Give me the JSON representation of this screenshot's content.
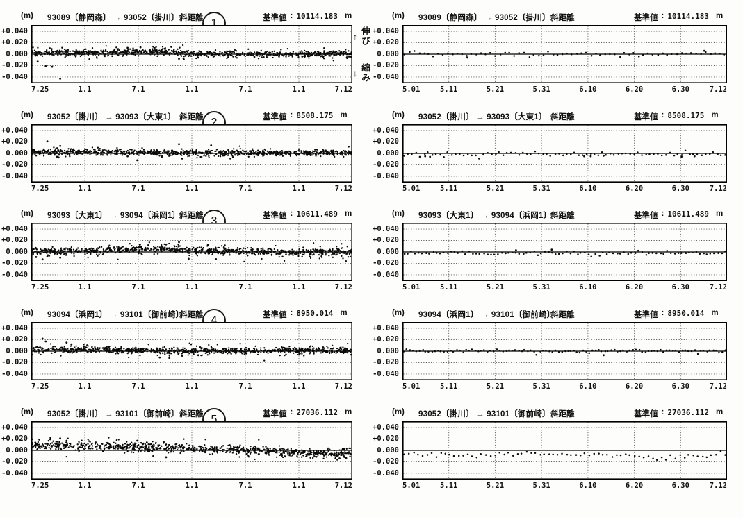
{
  "page": {
    "background": "#fdfdfc",
    "ink": "#111111"
  },
  "labels": {
    "unit": "(m)",
    "measure": "斜距離",
    "ref": "基準値",
    "ref_sep": ":",
    "ref_unit": "m"
  },
  "annotations": {
    "up_arrow": "↑",
    "extend_label": "伸び",
    "down_arrow": "↓",
    "shrink_label": "縮み"
  },
  "axis": {
    "y_ticks": [
      "+0.040",
      "+0.020",
      "0.000",
      "-0.020",
      "-0.040"
    ],
    "x_ticks_left": [
      "7.25",
      "1.1",
      "7.1",
      "1.1",
      "7.1",
      "1.1",
      "7.12"
    ],
    "x_ticks_right": [
      "5.01",
      "5.11",
      "5.21",
      "5.31",
      "6.10",
      "6.20",
      "6.30",
      "7.12"
    ]
  },
  "axis_common": {
    "ylim": [
      -0.051,
      0.051
    ],
    "gridlines_y": [
      0.04,
      0.02,
      -0.02,
      -0.04
    ],
    "zero_level": 0.0
  },
  "chart_data": [
    {
      "id": "row1-left",
      "type": "scatter",
      "x_axis": "left",
      "title": "93089〔静岡森〕 → 93052〔掛川〕",
      "circle_number": "1",
      "ref_value": "10114.183",
      "n_points": 900,
      "noise_sd": 0.0026,
      "seed": 11,
      "baseline_anchors": [
        [
          0,
          0.002
        ],
        [
          0.08,
          0.003
        ],
        [
          0.33,
          0.003
        ],
        [
          0.42,
          0.005
        ],
        [
          0.5,
          0.001
        ],
        [
          0.6,
          0.0
        ],
        [
          0.8,
          0.0
        ],
        [
          1,
          0.001
        ]
      ],
      "outliers": [
        [
          0.02,
          -0.013
        ],
        [
          0.045,
          -0.021
        ],
        [
          0.065,
          -0.022
        ],
        [
          0.09,
          -0.043
        ],
        [
          0.3,
          0.011
        ],
        [
          0.34,
          0.012
        ],
        [
          0.38,
          0.013
        ],
        [
          0.46,
          -0.008
        ],
        [
          0.475,
          -0.009
        ],
        [
          0.52,
          -0.006
        ]
      ]
    },
    {
      "id": "row1-right",
      "type": "scatter",
      "x_axis": "right",
      "title": "93089〔静岡森〕 → 93052〔掛川〕",
      "ref_value": "10114.183",
      "n_points": 68,
      "noise_sd": 0.0016,
      "seed": 66,
      "baseline_anchors": [
        [
          0,
          0.0
        ],
        [
          0.85,
          0.0
        ],
        [
          1,
          0.002
        ]
      ],
      "outliers": [
        [
          0.2,
          -0.006
        ],
        [
          0.93,
          0.006
        ]
      ]
    },
    {
      "id": "row2-left",
      "type": "scatter",
      "x_axis": "left",
      "title": "93052〔掛川〕 → 93093〔大東1〕",
      "circle_number": "2",
      "ref_value": "8508.175",
      "n_points": 900,
      "noise_sd": 0.0024,
      "seed": 22,
      "baseline_anchors": [
        [
          0,
          0.003
        ],
        [
          0.25,
          0.002
        ],
        [
          0.5,
          0.001
        ],
        [
          1,
          0.001
        ]
      ],
      "outliers": [
        [
          0.05,
          0.021
        ],
        [
          0.09,
          0.013
        ],
        [
          0.08,
          -0.006
        ],
        [
          0.085,
          -0.007
        ],
        [
          0.3,
          -0.005
        ],
        [
          0.33,
          -0.012
        ],
        [
          0.46,
          0.016
        ],
        [
          0.47,
          -0.009
        ],
        [
          0.56,
          0.014
        ],
        [
          0.64,
          0.005
        ]
      ]
    },
    {
      "id": "row2-right",
      "type": "scatter",
      "x_axis": "right",
      "title": "93052〔掛川〕 → 93093〔大東1〕",
      "ref_value": "8508.175",
      "n_points": 82,
      "noise_sd": 0.0018,
      "seed": 77,
      "baseline_anchors": [
        [
          0,
          -0.001
        ],
        [
          0.55,
          -0.001
        ],
        [
          0.6,
          -0.002
        ],
        [
          1,
          -0.002
        ]
      ],
      "outliers": [
        [
          0.07,
          -0.005
        ],
        [
          0.085,
          -0.006
        ],
        [
          0.56,
          -0.005
        ],
        [
          0.58,
          -0.005
        ],
        [
          0.62,
          -0.004
        ],
        [
          0.86,
          -0.006
        ],
        [
          0.9,
          -0.005
        ]
      ]
    },
    {
      "id": "row3-left",
      "type": "scatter",
      "x_axis": "left",
      "title": "93093〔大東1〕 → 93094〔浜岡1〕",
      "circle_number": "3",
      "ref_value": "10611.489",
      "n_points": 900,
      "noise_sd": 0.003,
      "seed": 33,
      "baseline_anchors": [
        [
          0,
          0.001
        ],
        [
          0.1,
          0.001
        ],
        [
          0.35,
          0.005
        ],
        [
          0.45,
          0.005
        ],
        [
          0.55,
          0.001
        ],
        [
          0.8,
          0.0
        ],
        [
          1,
          0.0
        ]
      ],
      "outliers": [
        [
          0.015,
          -0.009
        ],
        [
          0.035,
          -0.013
        ],
        [
          0.05,
          -0.008
        ],
        [
          0.09,
          -0.01
        ],
        [
          0.42,
          0.013
        ],
        [
          0.46,
          0.017
        ],
        [
          0.49,
          -0.012
        ],
        [
          0.55,
          0.012
        ],
        [
          0.6,
          0.008
        ]
      ]
    },
    {
      "id": "row3-right",
      "type": "scatter",
      "x_axis": "right",
      "title": "93093〔大東1〕 → 93094〔浜岡1〕",
      "ref_value": "10611.489",
      "n_points": 90,
      "noise_sd": 0.0016,
      "seed": 88,
      "baseline_anchors": [
        [
          0,
          -0.002
        ],
        [
          0.5,
          -0.002
        ],
        [
          1,
          -0.001
        ]
      ],
      "outliers": [
        [
          0.35,
          0.003
        ],
        [
          0.46,
          0.004
        ]
      ]
    },
    {
      "id": "row4-left",
      "type": "scatter",
      "x_axis": "left",
      "title": "93094〔浜岡1〕 → 93101〔御前崎〕",
      "circle_number": "4",
      "ref_value": "8950.014",
      "n_points": 900,
      "noise_sd": 0.0026,
      "seed": 44,
      "baseline_anchors": [
        [
          0,
          0.002
        ],
        [
          0.12,
          0.003
        ],
        [
          0.45,
          0.0
        ],
        [
          0.75,
          0.001
        ],
        [
          1,
          0.001
        ]
      ],
      "outliers": [
        [
          0.035,
          0.022
        ],
        [
          0.045,
          0.017
        ],
        [
          0.11,
          0.015
        ],
        [
          0.125,
          0.012
        ],
        [
          0.4,
          -0.011
        ],
        [
          0.43,
          -0.012
        ],
        [
          0.47,
          -0.008
        ],
        [
          0.52,
          -0.007
        ]
      ]
    },
    {
      "id": "row4-right",
      "type": "scatter",
      "x_axis": "right",
      "title": "93094〔浜岡1〕 → 93101〔御前崎〕",
      "ref_value": "8950.014",
      "n_points": 105,
      "noise_sd": 0.0014,
      "seed": 99,
      "baseline_anchors": [
        [
          0,
          0.0
        ],
        [
          1,
          0.0
        ]
      ],
      "outliers": [
        [
          0.62,
          -0.007
        ]
      ]
    },
    {
      "id": "row5-left",
      "type": "scatter",
      "x_axis": "left",
      "title": "93052〔掛川〕 → 93101〔御前崎〕",
      "circle_number": "5",
      "ref_value": "27036.112",
      "n_points": 900,
      "noise_sd": 0.0035,
      "seed": 55,
      "baseline_anchors": [
        [
          0,
          0.008
        ],
        [
          0.12,
          0.009
        ],
        [
          0.3,
          0.006
        ],
        [
          0.45,
          0.004
        ],
        [
          0.55,
          0.002
        ],
        [
          0.65,
          0.0
        ],
        [
          0.8,
          -0.003
        ],
        [
          0.9,
          -0.005
        ],
        [
          1,
          -0.007
        ]
      ],
      "outliers": [
        [
          0.025,
          0.019
        ],
        [
          0.06,
          0.022
        ],
        [
          0.09,
          0.021
        ],
        [
          0.11,
          0.017
        ],
        [
          0.33,
          0.017
        ],
        [
          0.36,
          0.014
        ],
        [
          0.38,
          -0.01
        ],
        [
          0.42,
          -0.012
        ],
        [
          0.96,
          -0.014
        ],
        [
          0.98,
          -0.013
        ]
      ]
    },
    {
      "id": "row5-right",
      "type": "scatter",
      "x_axis": "right",
      "title": "93052〔掛川〕 → 93101〔御前崎〕",
      "ref_value": "27036.112",
      "n_points": 72,
      "noise_sd": 0.002,
      "seed": 110,
      "baseline_anchors": [
        [
          0,
          -0.007
        ],
        [
          0.25,
          -0.009
        ],
        [
          0.35,
          -0.006
        ],
        [
          0.5,
          -0.008
        ],
        [
          0.62,
          -0.007
        ],
        [
          0.72,
          -0.01
        ],
        [
          0.78,
          -0.014
        ],
        [
          0.84,
          -0.009
        ],
        [
          0.95,
          -0.011
        ],
        [
          1,
          -0.01
        ]
      ],
      "outliers": []
    }
  ]
}
